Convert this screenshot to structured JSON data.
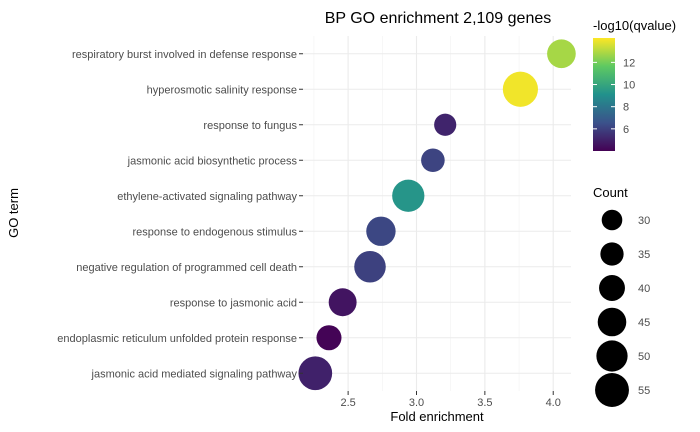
{
  "chart_data": {
    "type": "scatter",
    "title": "BP GO enrichment 2,109 genes",
    "xlabel": "Fold enrichment",
    "ylabel": "GO term",
    "xlim": [
      2.17,
      4.13
    ],
    "xticks": [
      "2.5",
      "3.0",
      "3.5",
      "4.0"
    ],
    "grid": true,
    "legend_placement": "right",
    "categories": [
      "jasmonic acid mediated signaling pathway",
      "endoplasmic reticulum unfolded protein response",
      "response to jasmonic acid",
      "negative regulation of programmed cell death",
      "response to endogenous stimulus",
      "ethylene-activated signaling pathway",
      "jasmonic acid biosynthetic process",
      "response to fungus",
      "hyperosmotic salinity response",
      "respiratory burst involved in defense response"
    ],
    "x": [
      2.26,
      2.36,
      2.46,
      2.66,
      2.74,
      2.94,
      3.12,
      3.21,
      3.76,
      4.06
    ],
    "count": [
      53,
      41,
      45,
      50,
      47,
      51,
      39,
      37,
      55,
      46
    ],
    "neg_log10_qvalue": [
      5.0,
      4.1,
      4.6,
      6.0,
      6.2,
      9.3,
      6.1,
      5.1,
      14.0,
      12.8
    ],
    "colorbar": {
      "title": "-log10(qvalue)",
      "min": 4.0,
      "max": 14.2,
      "ticks": [
        "6",
        "8",
        "10",
        "12"
      ],
      "colormap": [
        "#440154",
        "#3b528b",
        "#21918c",
        "#5ec962",
        "#fde725"
      ]
    },
    "size_legend": {
      "title": "Count",
      "values": [
        "30",
        "35",
        "40",
        "45",
        "50",
        "55"
      ]
    },
    "point_color_note_hex": "#000000"
  }
}
